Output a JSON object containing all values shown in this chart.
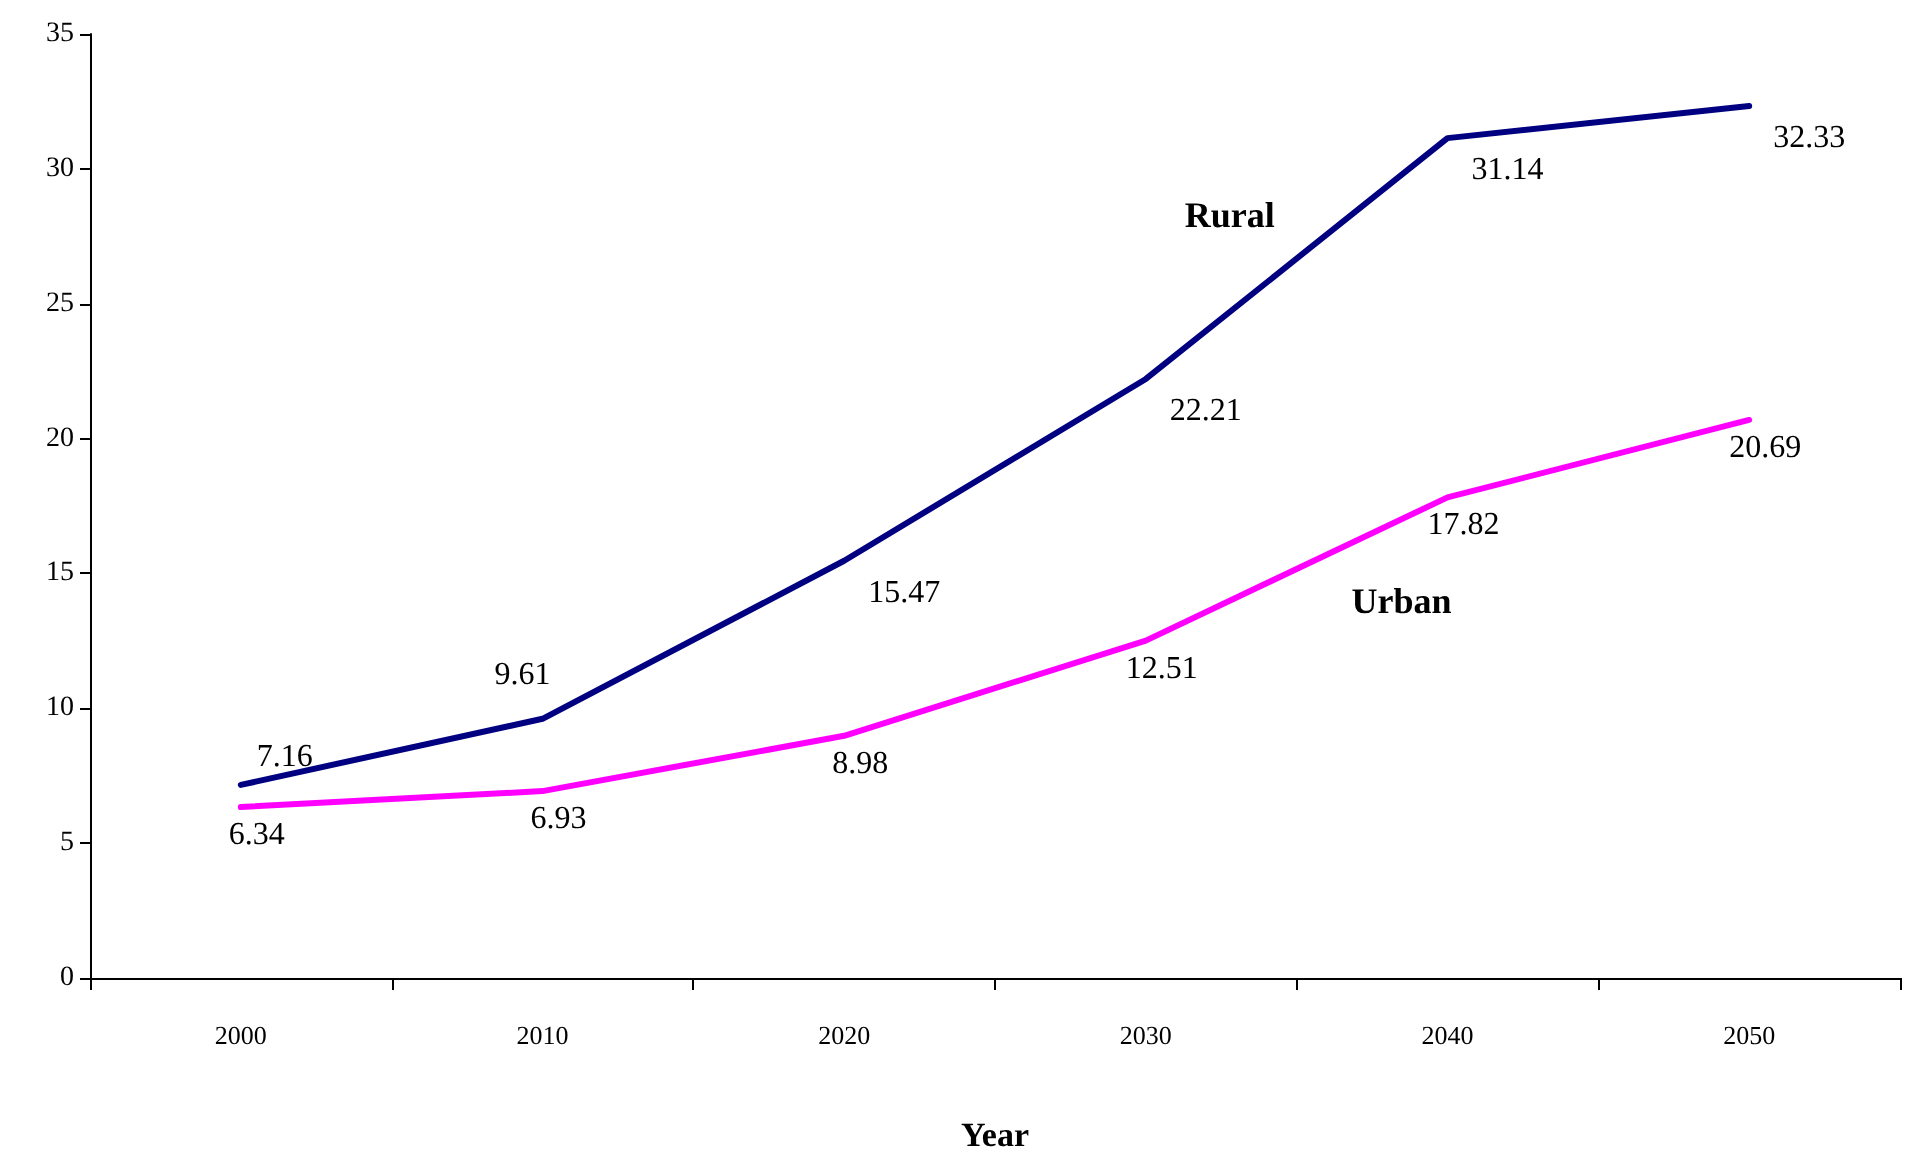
{
  "chart_data": {
    "type": "line",
    "xlabel": "Year",
    "categories": [
      "2000",
      "2010",
      "2020",
      "2030",
      "2040",
      "2050"
    ],
    "series": [
      {
        "name": "Rural",
        "color": "#000080",
        "values": [
          7.16,
          9.61,
          15.47,
          22.21,
          31.14,
          32.33
        ]
      },
      {
        "name": "Urban",
        "color": "#ff00ff",
        "values": [
          6.34,
          6.93,
          8.98,
          12.51,
          17.82,
          20.69
        ]
      }
    ],
    "ylim": [
      0,
      35
    ],
    "yticks": [
      0,
      5,
      10,
      15,
      20,
      25,
      30,
      35
    ],
    "data_labels": true,
    "grid": false,
    "legend": false,
    "marker": "none",
    "line_style": "solid"
  }
}
